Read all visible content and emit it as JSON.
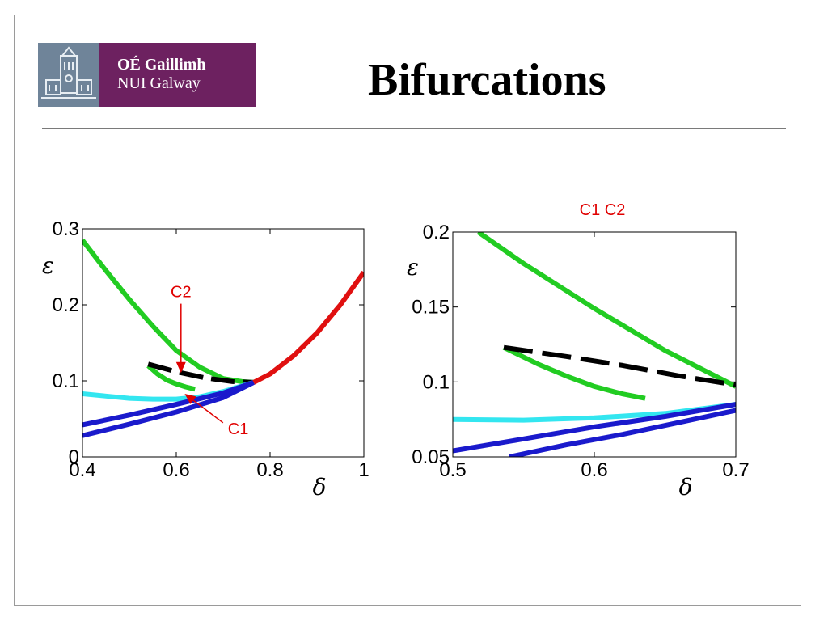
{
  "slide": {
    "title": "Bifurcations",
    "logo": {
      "line1": "OÉ Gaillimh",
      "line2": "NUI Galway",
      "bg_color": "#6d2160"
    }
  },
  "colors": {
    "green": "#22cc22",
    "black": "#000000",
    "cyan": "#33e6f0",
    "blue": "#1a1acc",
    "red": "#e01010",
    "annotation": "#e00000"
  },
  "chart_data": [
    {
      "type": "line",
      "title": "",
      "xlabel": "δ",
      "ylabel": "ε",
      "xlim": [
        0.4,
        1.0
      ],
      "ylim": [
        0,
        0.3
      ],
      "xticks": [
        "0.4",
        "0.6",
        "0.8",
        "1"
      ],
      "yticks": [
        "0",
        "0.1",
        "0.2",
        "0.3"
      ],
      "grid": false,
      "annotations": [
        {
          "text": "C2",
          "x": 0.61,
          "y": 0.21,
          "arrow_to": [
            0.61,
            0.112
          ]
        },
        {
          "text": "C1",
          "x": 0.71,
          "y": 0.03,
          "arrow_to": [
            0.62,
            0.082
          ]
        }
      ],
      "series": [
        {
          "color_key": "green",
          "style": "solid",
          "x": [
            0.4,
            0.45,
            0.5,
            0.55,
            0.6,
            0.65,
            0.7,
            0.74,
            0.765
          ],
          "y": [
            0.285,
            0.245,
            0.207,
            0.172,
            0.14,
            0.118,
            0.103,
            0.099,
            0.098
          ]
        },
        {
          "color_key": "green",
          "style": "solid",
          "x": [
            0.54,
            0.56,
            0.58,
            0.6,
            0.62,
            0.64
          ],
          "y": [
            0.12,
            0.109,
            0.101,
            0.096,
            0.092,
            0.089
          ]
        },
        {
          "color_key": "black",
          "style": "dashed",
          "x": [
            0.54,
            0.6,
            0.66,
            0.72,
            0.765
          ],
          "y": [
            0.122,
            0.112,
            0.104,
            0.099,
            0.098
          ]
        },
        {
          "color_key": "cyan",
          "style": "solid",
          "x": [
            0.4,
            0.45,
            0.5,
            0.55,
            0.6,
            0.65,
            0.7,
            0.765
          ],
          "y": [
            0.083,
            0.08,
            0.077,
            0.076,
            0.076,
            0.079,
            0.086,
            0.098
          ]
        },
        {
          "color_key": "blue",
          "style": "solid",
          "x": [
            0.4,
            0.5,
            0.6,
            0.7,
            0.765
          ],
          "y": [
            0.042,
            0.055,
            0.069,
            0.084,
            0.098
          ]
        },
        {
          "color_key": "blue",
          "style": "solid",
          "x": [
            0.4,
            0.5,
            0.6,
            0.7,
            0.765
          ],
          "y": [
            0.028,
            0.043,
            0.059,
            0.078,
            0.098
          ]
        },
        {
          "color_key": "red",
          "style": "solid",
          "x": [
            0.765,
            0.8,
            0.85,
            0.9,
            0.95,
            1.0
          ],
          "y": [
            0.098,
            0.109,
            0.133,
            0.163,
            0.2,
            0.243
          ]
        }
      ]
    },
    {
      "type": "line",
      "title": "C1  C2",
      "xlabel": "δ",
      "ylabel": "ε",
      "xlim": [
        0.5,
        0.7
      ],
      "ylim": [
        0.05,
        0.2
      ],
      "xticks": [
        "0.5",
        "0.6",
        "0.7"
      ],
      "yticks": [
        "0.05",
        "0.1",
        "0.15",
        "0.2"
      ],
      "grid": false,
      "series": [
        {
          "color_key": "green",
          "style": "solid",
          "x": [
            0.518,
            0.55,
            0.6,
            0.65,
            0.7
          ],
          "y": [
            0.2,
            0.179,
            0.149,
            0.121,
            0.097
          ]
        },
        {
          "color_key": "green",
          "style": "solid",
          "x": [
            0.536,
            0.56,
            0.58,
            0.6,
            0.62,
            0.636
          ],
          "y": [
            0.123,
            0.112,
            0.104,
            0.097,
            0.092,
            0.089
          ]
        },
        {
          "color_key": "black",
          "style": "dashed",
          "x": [
            0.536,
            0.58,
            0.62,
            0.66,
            0.7
          ],
          "y": [
            0.123,
            0.117,
            0.111,
            0.104,
            0.098
          ]
        },
        {
          "color_key": "cyan",
          "style": "solid",
          "x": [
            0.5,
            0.55,
            0.6,
            0.65,
            0.7
          ],
          "y": [
            0.075,
            0.0745,
            0.076,
            0.079,
            0.085
          ]
        },
        {
          "color_key": "blue",
          "style": "solid",
          "x": [
            0.5,
            0.55,
            0.6,
            0.65,
            0.7
          ],
          "y": [
            0.054,
            0.062,
            0.07,
            0.077,
            0.085
          ]
        },
        {
          "color_key": "blue",
          "style": "solid",
          "x": [
            0.54,
            0.58,
            0.62,
            0.66,
            0.7
          ],
          "y": [
            0.05,
            0.058,
            0.065,
            0.073,
            0.081
          ]
        }
      ]
    }
  ]
}
